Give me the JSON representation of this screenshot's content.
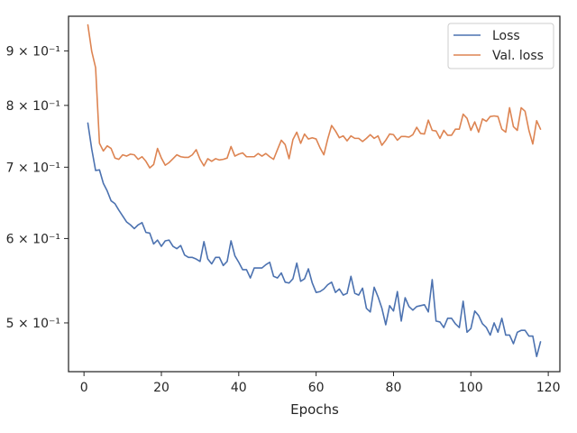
{
  "chart_data": {
    "type": "line",
    "title": "",
    "xlabel": "Epochs",
    "ylabel": "",
    "xlim": [
      -4,
      123
    ],
    "ylim": [
      0.45,
      0.97
    ],
    "yscale": "log",
    "grid": false,
    "legend_position": "top-right",
    "x_ticks": [
      {
        "value": 0,
        "label": "0"
      },
      {
        "value": 20,
        "label": "20"
      },
      {
        "value": 40,
        "label": "40"
      },
      {
        "value": 60,
        "label": "60"
      },
      {
        "value": 80,
        "label": "80"
      },
      {
        "value": 100,
        "label": "100"
      },
      {
        "value": 120,
        "label": "120"
      }
    ],
    "y_ticks": [
      {
        "value": 0.5,
        "label": "5 × 10⁻¹"
      },
      {
        "value": 0.6,
        "label": "6 × 10⁻¹"
      },
      {
        "value": 0.7,
        "label": "7 × 10⁻¹"
      },
      {
        "value": 0.8,
        "label": "8 × 10⁻¹"
      },
      {
        "value": 0.9,
        "label": "9 × 10⁻¹"
      }
    ],
    "x": [
      1,
      2,
      3,
      4,
      5,
      6,
      7,
      8,
      9,
      10,
      11,
      12,
      13,
      14,
      15,
      16,
      17,
      18,
      19,
      20,
      21,
      22,
      23,
      24,
      25,
      26,
      27,
      28,
      29,
      30,
      31,
      32,
      33,
      34,
      35,
      36,
      37,
      38,
      39,
      40,
      41,
      42,
      43,
      44,
      45,
      46,
      47,
      48,
      49,
      50,
      51,
      52,
      53,
      54,
      55,
      56,
      57,
      58,
      59,
      60,
      61,
      62,
      63,
      64,
      65,
      66,
      67,
      68,
      69,
      70,
      71,
      72,
      73,
      74,
      75,
      76,
      77,
      78,
      79,
      80,
      81,
      82,
      83,
      84,
      85,
      86,
      87,
      88,
      89,
      90,
      91,
      92,
      93,
      94,
      95,
      96,
      97,
      98,
      99,
      100,
      101,
      102,
      103,
      104,
      105,
      106,
      107,
      108,
      109,
      110,
      111,
      112,
      113,
      114,
      115,
      116,
      117,
      118
    ],
    "series": [
      {
        "name": "Loss",
        "color": "#4c72b0",
        "values": [
          0.77,
          0.728,
          0.695,
          0.696,
          0.676,
          0.665,
          0.651,
          0.647,
          0.638,
          0.63,
          0.622,
          0.618,
          0.613,
          0.618,
          0.621,
          0.608,
          0.607,
          0.593,
          0.598,
          0.59,
          0.597,
          0.598,
          0.59,
          0.587,
          0.591,
          0.579,
          0.576,
          0.576,
          0.574,
          0.571,
          0.596,
          0.574,
          0.568,
          0.576,
          0.576,
          0.566,
          0.571,
          0.597,
          0.578,
          0.57,
          0.561,
          0.561,
          0.551,
          0.563,
          0.563,
          0.563,
          0.567,
          0.57,
          0.553,
          0.551,
          0.557,
          0.546,
          0.545,
          0.55,
          0.569,
          0.547,
          0.55,
          0.562,
          0.545,
          0.534,
          0.535,
          0.538,
          0.543,
          0.546,
          0.534,
          0.538,
          0.531,
          0.533,
          0.553,
          0.533,
          0.531,
          0.539,
          0.516,
          0.512,
          0.54,
          0.529,
          0.516,
          0.498,
          0.519,
          0.513,
          0.535,
          0.502,
          0.528,
          0.518,
          0.514,
          0.518,
          0.519,
          0.52,
          0.512,
          0.549,
          0.502,
          0.501,
          0.495,
          0.505,
          0.505,
          0.499,
          0.495,
          0.524,
          0.49,
          0.494,
          0.513,
          0.508,
          0.499,
          0.495,
          0.487,
          0.5,
          0.49,
          0.505,
          0.487,
          0.487,
          0.478,
          0.49,
          0.492,
          0.492,
          0.486,
          0.486,
          0.465,
          0.48
        ]
      },
      {
        "name": "Val. loss",
        "color": "#dd8452",
        "values": [
          0.952,
          0.899,
          0.868,
          0.737,
          0.725,
          0.733,
          0.729,
          0.714,
          0.712,
          0.719,
          0.717,
          0.72,
          0.719,
          0.712,
          0.716,
          0.709,
          0.699,
          0.704,
          0.729,
          0.714,
          0.703,
          0.707,
          0.713,
          0.719,
          0.716,
          0.715,
          0.715,
          0.719,
          0.727,
          0.712,
          0.702,
          0.713,
          0.709,
          0.713,
          0.711,
          0.712,
          0.714,
          0.732,
          0.717,
          0.72,
          0.722,
          0.716,
          0.716,
          0.716,
          0.721,
          0.717,
          0.721,
          0.716,
          0.712,
          0.727,
          0.742,
          0.735,
          0.713,
          0.743,
          0.755,
          0.737,
          0.752,
          0.744,
          0.746,
          0.744,
          0.73,
          0.719,
          0.744,
          0.766,
          0.757,
          0.746,
          0.749,
          0.741,
          0.749,
          0.745,
          0.745,
          0.74,
          0.745,
          0.751,
          0.745,
          0.749,
          0.734,
          0.742,
          0.752,
          0.751,
          0.742,
          0.748,
          0.748,
          0.747,
          0.751,
          0.763,
          0.753,
          0.752,
          0.775,
          0.758,
          0.757,
          0.745,
          0.758,
          0.75,
          0.75,
          0.76,
          0.76,
          0.785,
          0.778,
          0.758,
          0.772,
          0.755,
          0.777,
          0.773,
          0.781,
          0.782,
          0.781,
          0.76,
          0.755,
          0.796,
          0.764,
          0.758,
          0.796,
          0.79,
          0.758,
          0.736,
          0.774,
          0.76
        ]
      }
    ]
  }
}
